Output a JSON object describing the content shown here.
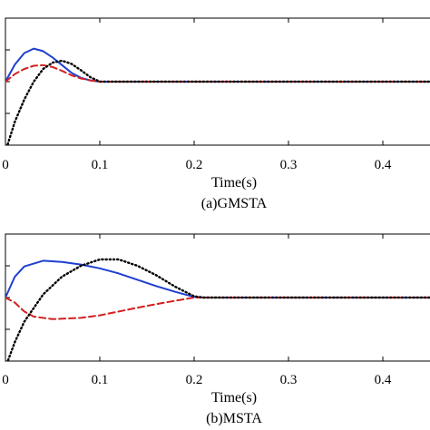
{
  "chart_data": [
    {
      "type": "line",
      "xlabel": "Time(s)",
      "caption": "(a)GMSTA",
      "xlim": [
        0,
        0.45
      ],
      "ylim": [
        -1,
        1
      ],
      "xticks": [
        0,
        0.1,
        0.2,
        0.3,
        0.4
      ],
      "xtick_labels": [
        "0",
        "0.1",
        "0.2",
        "0.3",
        "0.4"
      ],
      "yticks": [
        -0.5,
        0,
        0.5
      ],
      "grid": false,
      "series": [
        {
          "color": "#1f3fcf",
          "style": "solid",
          "x": [
            0,
            0.01,
            0.02,
            0.03,
            0.04,
            0.05,
            0.06,
            0.07,
            0.08,
            0.09,
            0.1,
            0.11,
            0.2,
            0.3,
            0.45
          ],
          "y": [
            0,
            0.27,
            0.45,
            0.52,
            0.48,
            0.38,
            0.26,
            0.14,
            0.06,
            0.02,
            0.0,
            0.0,
            0.0,
            0.0,
            0.0
          ]
        },
        {
          "color": "#d42020",
          "style": "dashed",
          "x": [
            0,
            0.01,
            0.02,
            0.03,
            0.04,
            0.05,
            0.06,
            0.07,
            0.08,
            0.09,
            0.1,
            0.11,
            0.2,
            0.3,
            0.45
          ],
          "y": [
            0,
            0.12,
            0.2,
            0.25,
            0.26,
            0.23,
            0.17,
            0.1,
            0.05,
            0.02,
            0.0,
            0.0,
            0.0,
            0.0,
            0.0
          ]
        },
        {
          "color": "#000000",
          "style": "dotted",
          "x": [
            0,
            0.01,
            0.02,
            0.03,
            0.04,
            0.05,
            0.06,
            0.07,
            0.08,
            0.09,
            0.1,
            0.11,
            0.2,
            0.3,
            0.45
          ],
          "y": [
            -1.1,
            -0.63,
            -0.28,
            0.0,
            0.2,
            0.3,
            0.33,
            0.28,
            0.18,
            0.07,
            0.0,
            0.0,
            0.0,
            0.0,
            0.0
          ]
        }
      ]
    },
    {
      "type": "line",
      "xlabel": "Time(s)",
      "caption": "(b)MSTA",
      "xlim": [
        0,
        0.45
      ],
      "ylim": [
        -1,
        1
      ],
      "xticks": [
        0,
        0.1,
        0.2,
        0.3,
        0.4
      ],
      "xtick_labels": [
        "0",
        "0.1",
        "0.2",
        "0.3",
        "0.4"
      ],
      "yticks": [
        -0.5,
        0,
        0.5
      ],
      "grid": false,
      "series": [
        {
          "color": "#1f3fcf",
          "style": "solid",
          "x": [
            0,
            0.01,
            0.02,
            0.04,
            0.06,
            0.08,
            0.1,
            0.12,
            0.14,
            0.16,
            0.18,
            0.2,
            0.21,
            0.3,
            0.45
          ],
          "y": [
            0,
            0.33,
            0.49,
            0.58,
            0.56,
            0.52,
            0.46,
            0.38,
            0.28,
            0.18,
            0.09,
            0.01,
            0.0,
            0.0,
            0.0
          ]
        },
        {
          "color": "#d42020",
          "style": "dashed",
          "x": [
            0,
            0.01,
            0.02,
            0.03,
            0.05,
            0.08,
            0.1,
            0.12,
            0.15,
            0.18,
            0.2,
            0.21,
            0.3,
            0.45
          ],
          "y": [
            0,
            -0.08,
            -0.22,
            -0.3,
            -0.34,
            -0.32,
            -0.28,
            -0.22,
            -0.13,
            -0.05,
            0.0,
            0.0,
            0.0,
            0.0
          ]
        },
        {
          "color": "#000000",
          "style": "dotted",
          "x": [
            0,
            0.01,
            0.02,
            0.04,
            0.06,
            0.08,
            0.1,
            0.12,
            0.14,
            0.16,
            0.18,
            0.2,
            0.21,
            0.3,
            0.45
          ],
          "y": [
            -1.1,
            -0.7,
            -0.38,
            0.05,
            0.33,
            0.5,
            0.6,
            0.6,
            0.5,
            0.35,
            0.17,
            0.02,
            0.0,
            0.0,
            0.0
          ]
        }
      ]
    }
  ]
}
